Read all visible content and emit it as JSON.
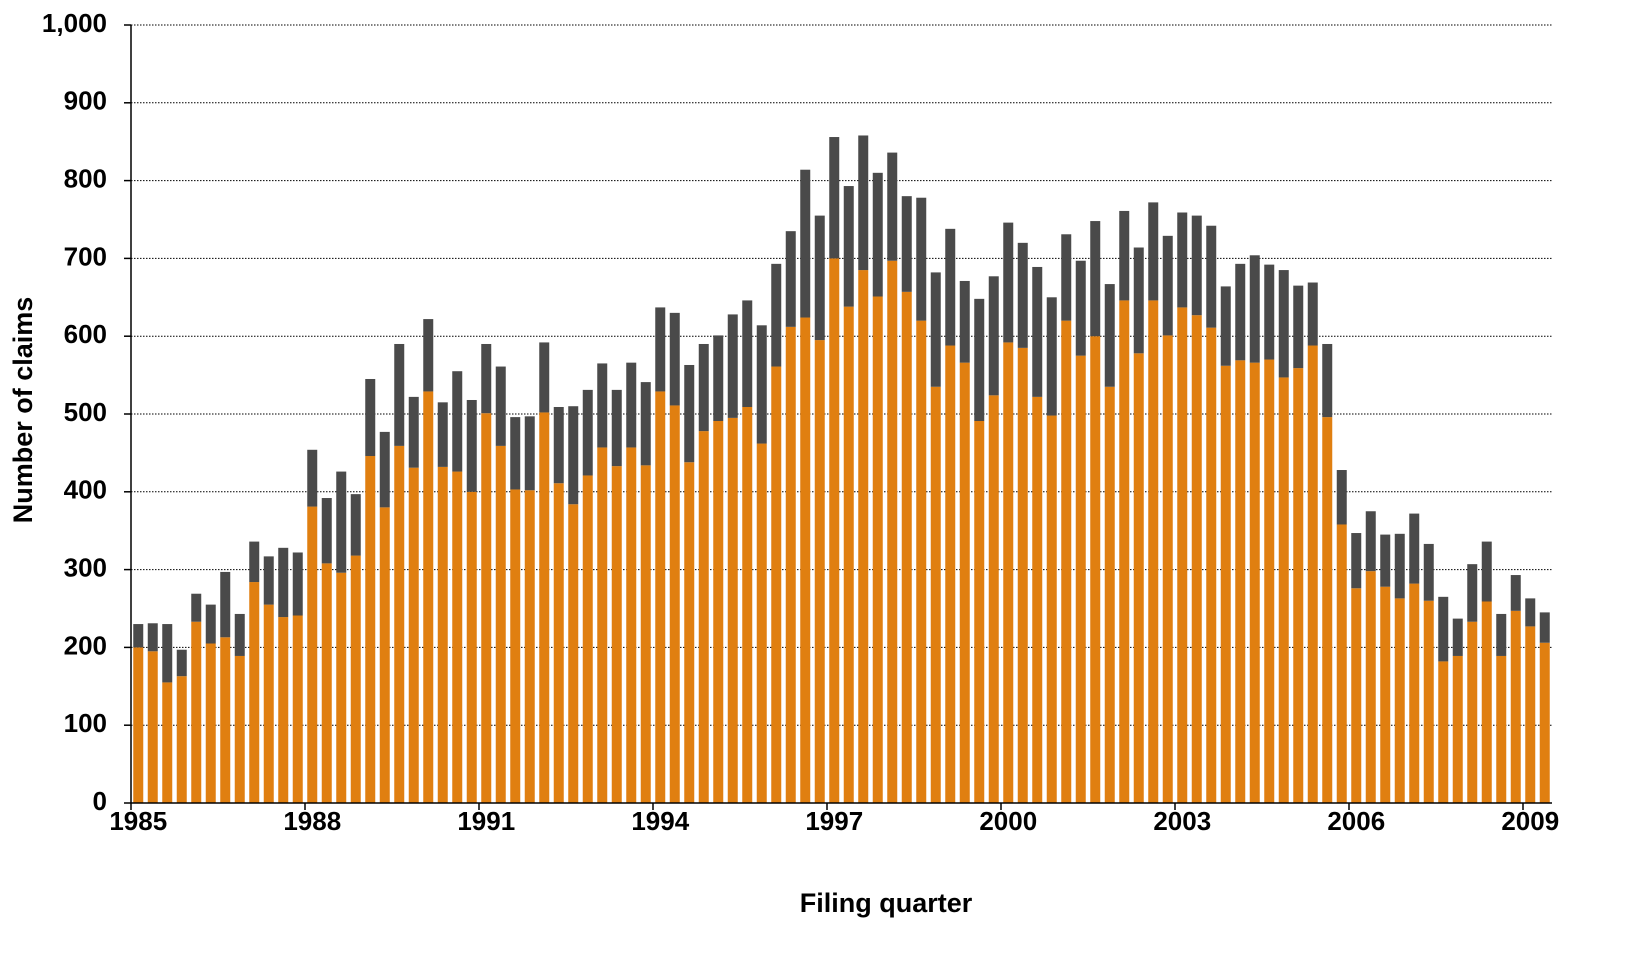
{
  "chart_data": {
    "type": "stacked_bar",
    "x_label": "Filing quarter",
    "y_label": "Number of claims",
    "categories": [
      "1985",
      null,
      null,
      null,
      null,
      null,
      null,
      null,
      null,
      null,
      null,
      null,
      "1988",
      null,
      null,
      null,
      null,
      null,
      null,
      null,
      null,
      null,
      null,
      null,
      "1991",
      null,
      null,
      null,
      null,
      null,
      null,
      null,
      null,
      null,
      null,
      null,
      "1994",
      null,
      null,
      null,
      null,
      null,
      null,
      null,
      null,
      null,
      null,
      null,
      "1997",
      null,
      null,
      null,
      null,
      null,
      null,
      null,
      null,
      null,
      null,
      null,
      "2000",
      null,
      null,
      null,
      null,
      null,
      null,
      null,
      null,
      null,
      null,
      null,
      "2003",
      null,
      null,
      null,
      null,
      null,
      null,
      null,
      null,
      null,
      null,
      null,
      "2006",
      null,
      null,
      null,
      null,
      null,
      null,
      null,
      null,
      null,
      null,
      null,
      "2009",
      null
    ],
    "series": [
      {
        "color": "#e07f10",
        "values": [
          200,
          195,
          155,
          163,
          233,
          205,
          213,
          189,
          284,
          255,
          239,
          241,
          381,
          308,
          296,
          318,
          446,
          380,
          459,
          431,
          529,
          432,
          426,
          400,
          501,
          459,
          403,
          402,
          502,
          411,
          384,
          421,
          457,
          433,
          457,
          434,
          529,
          511,
          438,
          478,
          491,
          495,
          509,
          462,
          561,
          612,
          624,
          595,
          700,
          638,
          685,
          651,
          697,
          657,
          620,
          535,
          588,
          566,
          491,
          524,
          592,
          585,
          522,
          498,
          620,
          575,
          600,
          535,
          646,
          578,
          646,
          601,
          637,
          627,
          611,
          562,
          569,
          566,
          570,
          547,
          559,
          588,
          496,
          358,
          276,
          298,
          278,
          263,
          282,
          260,
          182,
          189,
          233,
          259,
          189,
          247,
          227,
          206
        ]
      },
      {
        "color": "#4a4a4a",
        "values": [
          30,
          36,
          75,
          34,
          36,
          50,
          84,
          54,
          52,
          62,
          89,
          81,
          73,
          84,
          130,
          79,
          99,
          97,
          131,
          91,
          93,
          83,
          129,
          118,
          89,
          102,
          93,
          95,
          90,
          98,
          126,
          110,
          108,
          98,
          109,
          107,
          108,
          119,
          125,
          112,
          110,
          133,
          137,
          152,
          132,
          123,
          190,
          160,
          156,
          155,
          173,
          159,
          139,
          123,
          158,
          147,
          150,
          105,
          157,
          153,
          154,
          135,
          167,
          152,
          111,
          122,
          148,
          132,
          115,
          136,
          126,
          128,
          122,
          128,
          131,
          102,
          124,
          138,
          122,
          138,
          106,
          81,
          94,
          70,
          71,
          77,
          67,
          83,
          90,
          73,
          83,
          48,
          74,
          77,
          54,
          46,
          36,
          39
        ]
      }
    ],
    "ylim": [
      0,
      1000
    ],
    "yticks": [
      0,
      100,
      200,
      300,
      400,
      500,
      600,
      700,
      800,
      900,
      {
        "value": 1000,
        "label": "1,000"
      }
    ],
    "grid": true
  }
}
